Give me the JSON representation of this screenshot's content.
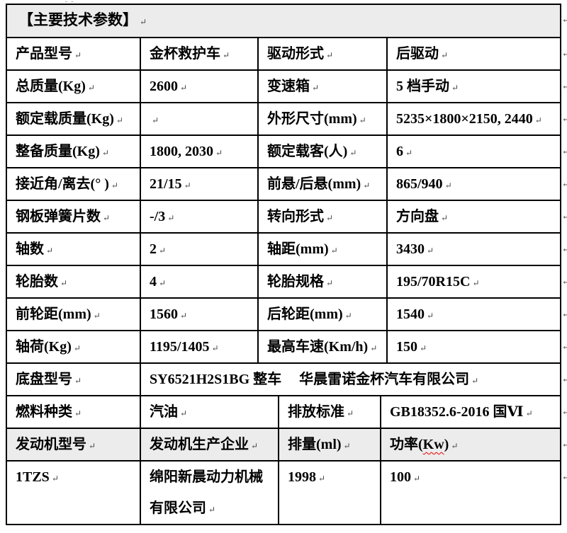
{
  "document": {
    "title": "【主要技术参数】",
    "spec_rows": [
      [
        "产品型号",
        "金杯救护车",
        "驱动形式",
        "后驱动"
      ],
      [
        "总质量(Kg)",
        "2600",
        "变速箱",
        "5 档手动"
      ],
      [
        "额定载质量(Kg)",
        "",
        "外形尺寸(mm)",
        "5235×1800×2150, 2440"
      ],
      [
        "整备质量(Kg)",
        "1800, 2030",
        "额定载客(人)",
        "6"
      ],
      [
        "接近角/离去(° )",
        "21/15",
        "前悬/后悬(mm)",
        "865/940"
      ],
      [
        "钢板弹簧片数",
        "-/3",
        "转向形式",
        "方向盘"
      ],
      [
        "轴数",
        "2",
        "轴距(mm)",
        "3430"
      ],
      [
        "轮胎数",
        "4",
        "轮胎规格",
        "195/70R15C"
      ],
      [
        "前轮距(mm)",
        "1560",
        "后轮距(mm)",
        "1540"
      ],
      [
        "轴荷(Kg)",
        "1195/1405",
        "最高车速(Km/h)",
        "150"
      ]
    ],
    "chassis_row": {
      "label": "底盘型号",
      "value": "SY6521H2S1BG 整车　 华晨雷诺金杯汽车有限公司"
    },
    "fuel_row": {
      "label": "燃料种类",
      "value": "汽油",
      "label2": "排放标准",
      "value2": "GB18352.6-2016 国Ⅵ"
    },
    "engine_header_row": {
      "col1": "发动机型号",
      "col2": "发动机生产企业",
      "col3": "排量(ml)",
      "power_pre": "功率(",
      "power_word": "Kw",
      "power_post": ")"
    },
    "engine_row": {
      "model": "1TZS",
      "manufacturer": "绵阳新晨动力机械有限公司",
      "displacement": "1998",
      "power": "100"
    }
  },
  "icons": {
    "line-break-mark": "↵"
  },
  "colors": {
    "header_bg": "#ececec",
    "border": "#000000",
    "text": "#000000",
    "spellcheck_underline": "#e60000"
  }
}
